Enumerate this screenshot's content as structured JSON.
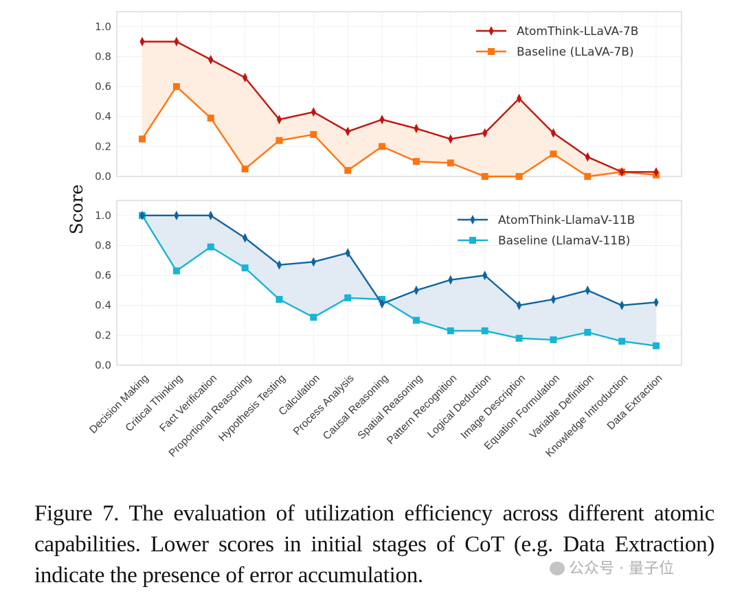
{
  "chart_data": [
    {
      "type": "line",
      "panel": "top",
      "categories": [
        "Decision Making",
        "Critical Thinking",
        "Fact Verification",
        "Proportional Reasoning",
        "Hypothesis Testing",
        "Calculation",
        "Process Analysis",
        "Causal Reasoning",
        "Spatial Reasoning",
        "Pattern Recognition",
        "Logical Deduction",
        "Image Description",
        "Equation Formulation",
        "Variable Definition",
        "Knowledge Introduction",
        "Data Extraction"
      ],
      "series": [
        {
          "name": "AtomThink-LLaVA-7B",
          "color": "#c0150f",
          "marker": "diamond",
          "values": [
            0.9,
            0.9,
            0.78,
            0.66,
            0.38,
            0.43,
            0.3,
            0.38,
            0.32,
            0.25,
            0.29,
            0.52,
            0.29,
            0.13,
            0.03,
            0.03
          ]
        },
        {
          "name": "Baseline (LLaVA-7B)",
          "color": "#ff7410",
          "marker": "square",
          "values": [
            0.25,
            0.6,
            0.39,
            0.05,
            0.24,
            0.28,
            0.04,
            0.2,
            0.1,
            0.09,
            0.0,
            0.0,
            0.15,
            0.0,
            0.03,
            0.01
          ]
        }
      ],
      "fill_color": "#fdebdc",
      "yticks": [
        "0.0",
        "0.2",
        "0.4",
        "0.6",
        "0.8",
        "1.0"
      ],
      "ylim": [
        0,
        1.1
      ],
      "grid": true,
      "legend": "top-right"
    },
    {
      "type": "line",
      "panel": "bottom",
      "categories": [
        "Decision Making",
        "Critical Thinking",
        "Fact Verification",
        "Proportional Reasoning",
        "Hypothesis Testing",
        "Calculation",
        "Process Analysis",
        "Causal Reasoning",
        "Spatial Reasoning",
        "Pattern Recognition",
        "Logical Deduction",
        "Image Description",
        "Equation Formulation",
        "Variable Definition",
        "Knowledge Introduction",
        "Data Extraction"
      ],
      "series": [
        {
          "name": "AtomThink-LlamaV-11B",
          "color": "#11649e",
          "marker": "diamond",
          "values": [
            1.0,
            1.0,
            1.0,
            0.85,
            0.67,
            0.69,
            0.75,
            0.41,
            0.5,
            0.57,
            0.6,
            0.4,
            0.44,
            0.5,
            0.4,
            0.42
          ]
        },
        {
          "name": "Baseline (LlamaV-11B)",
          "color": "#16b4d6",
          "marker": "square",
          "values": [
            1.0,
            0.63,
            0.79,
            0.65,
            0.44,
            0.32,
            0.45,
            0.44,
            0.3,
            0.23,
            0.23,
            0.18,
            0.17,
            0.22,
            0.16,
            0.13
          ]
        }
      ],
      "fill_color": "#dde8f2",
      "yticks": [
        "0.0",
        "0.2",
        "0.4",
        "0.6",
        "0.8",
        "1.0"
      ],
      "ylim": [
        0,
        1.1
      ],
      "grid": true,
      "legend": "top-right"
    }
  ],
  "ylabel": "Score",
  "caption": "Figure 7.  The evaluation of utilization efficiency across different atomic capabilities.  Lower scores in initial stages of CoT (e.g. Data Extraction) indicate the presence of error accumulation.",
  "watermark": "公众号 · 量子位"
}
